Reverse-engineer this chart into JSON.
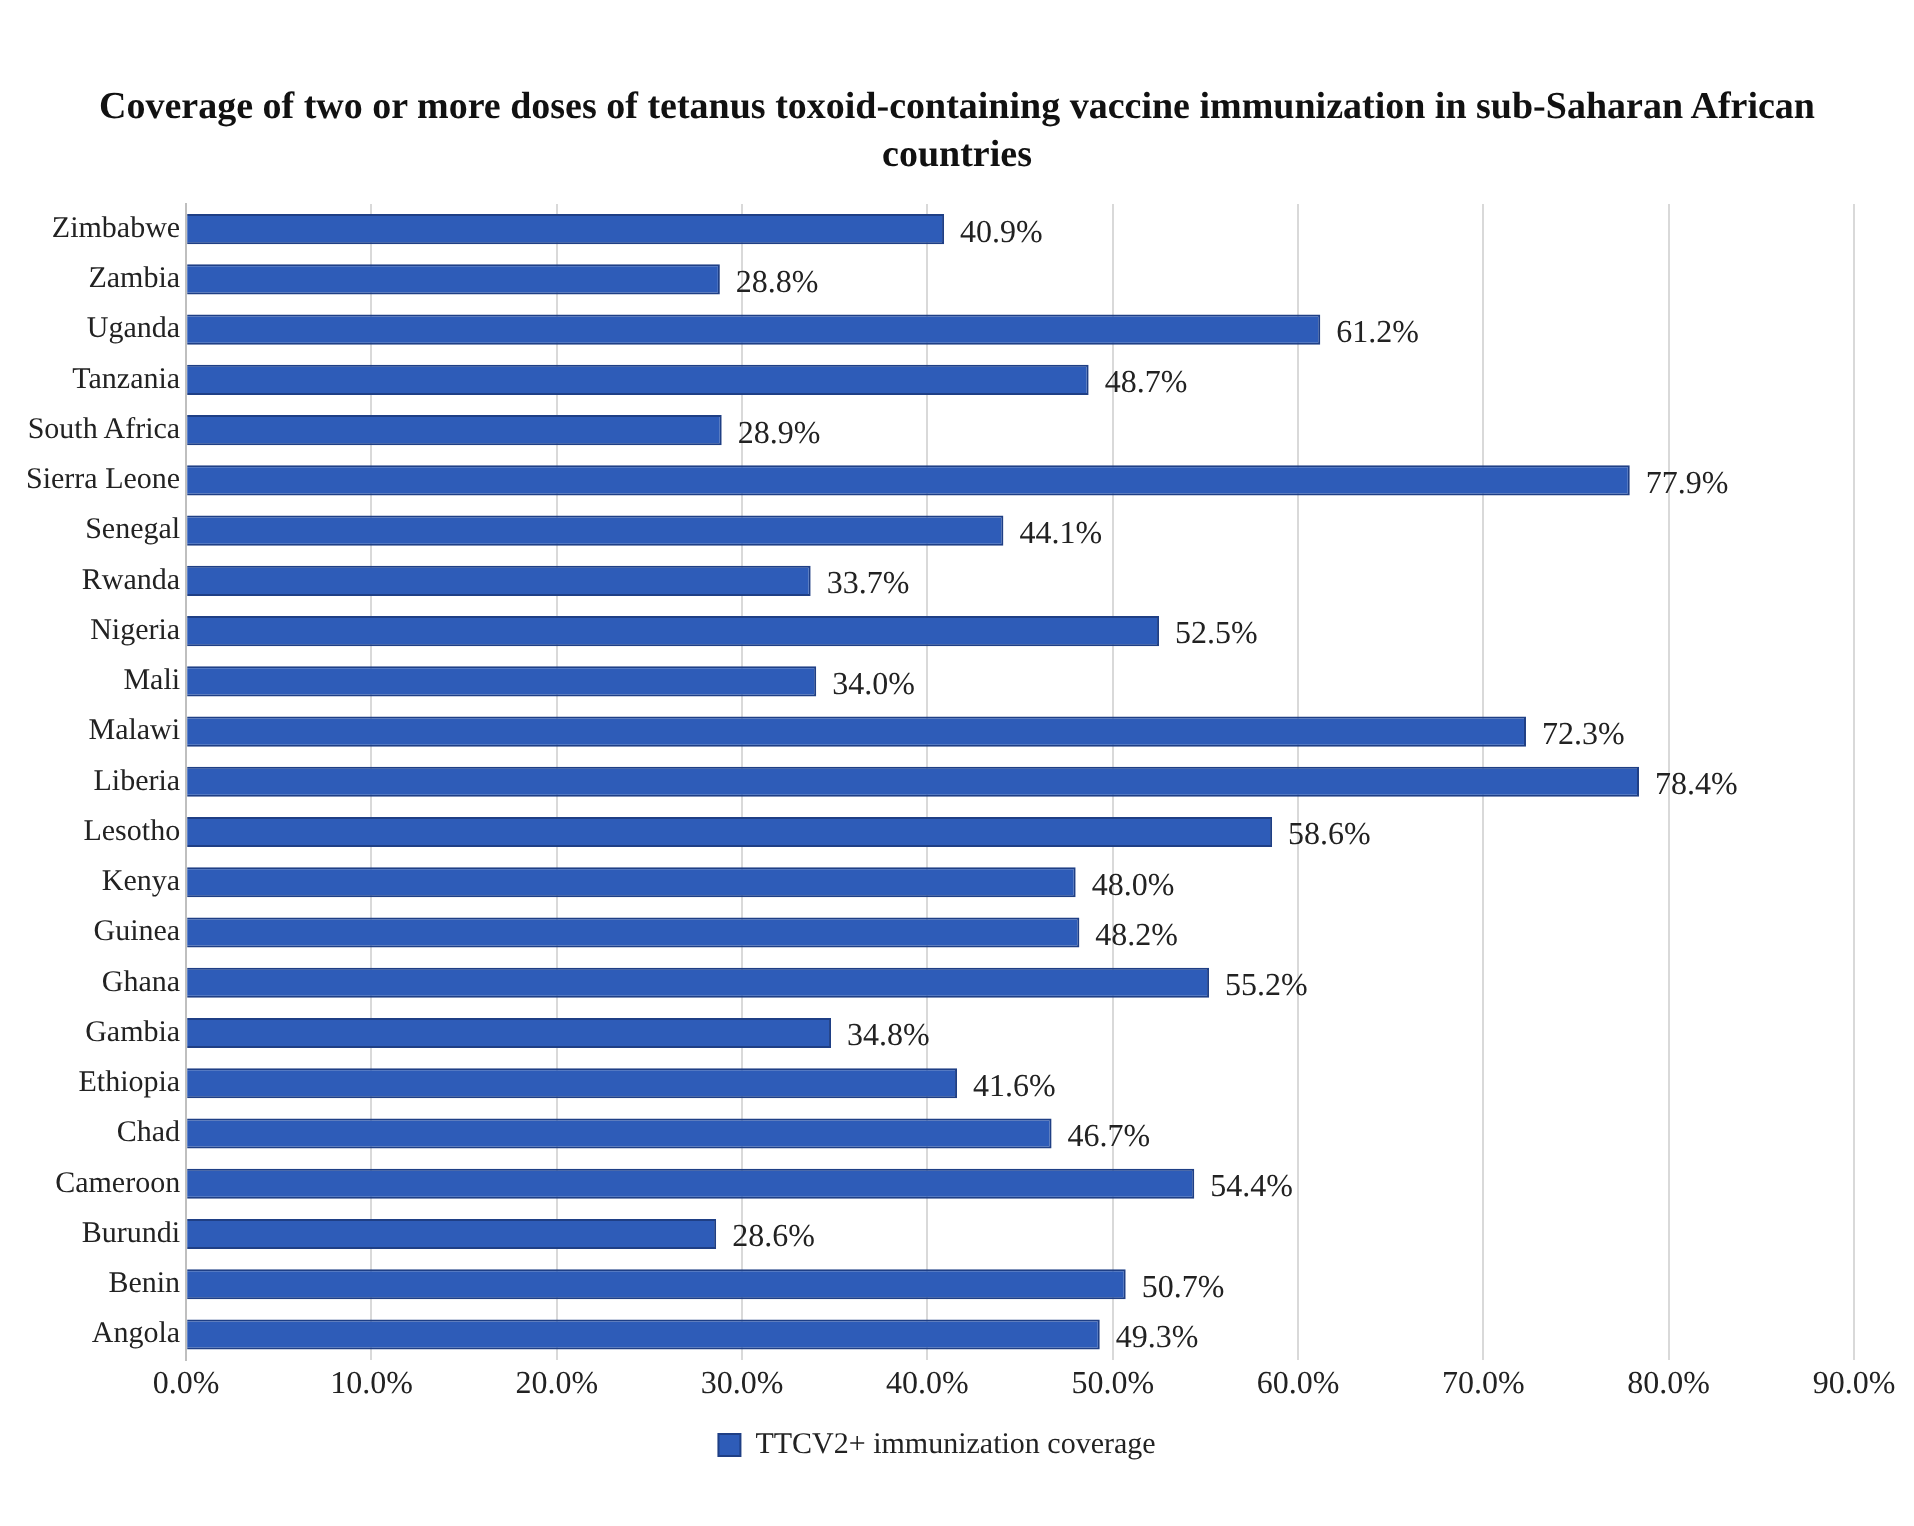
{
  "chart_data": {
    "type": "bar",
    "orientation": "horizontal",
    "title": "Coverage of two or more doses of tetanus toxoid-containing vaccine immunization in sub-Saharan African countries",
    "categories": [
      "Zimbabwe",
      "Zambia",
      "Uganda",
      "Tanzania",
      "South Africa",
      "Sierra Leone",
      "Senegal",
      "Rwanda",
      "Nigeria",
      "Mali",
      "Malawi",
      "Liberia",
      "Lesotho",
      "Kenya",
      "Guinea",
      "Ghana",
      "Gambia",
      "Ethiopia",
      "Chad",
      "Cameroon",
      "Burundi",
      "Benin",
      "Angola"
    ],
    "series": [
      {
        "name": "TTCV2+ immunization coverage",
        "color": "#2e5cb8",
        "values": [
          40.9,
          28.8,
          61.2,
          48.7,
          28.9,
          77.9,
          44.1,
          33.7,
          52.5,
          34.0,
          72.3,
          78.4,
          58.6,
          48.0,
          48.2,
          55.2,
          34.8,
          41.6,
          46.7,
          54.4,
          28.6,
          50.7,
          49.3
        ],
        "value_labels": [
          "40.9%",
          "28.8%",
          "61.2%",
          "48.7%",
          "28.9%",
          "77.9%",
          "44.1%",
          "33.7%",
          "52.5%",
          "34.0%",
          "72.3%",
          "78.4%",
          "58.6%",
          "48.0%",
          "48.2%",
          "55.2%",
          "34.8%",
          "41.6%",
          "46.7%",
          "54.4%",
          "28.6%",
          "50.7%",
          "49.3%"
        ]
      }
    ],
    "xlim": [
      0,
      90
    ],
    "xticks": [
      {
        "value": 0,
        "label": "0.0%"
      },
      {
        "value": 10,
        "label": "10.0%"
      },
      {
        "value": 20,
        "label": "20.0%"
      },
      {
        "value": 30,
        "label": "30.0%"
      },
      {
        "value": 40,
        "label": "40.0%"
      },
      {
        "value": 50,
        "label": "50.0%"
      },
      {
        "value": 60,
        "label": "60.0%"
      },
      {
        "value": 70,
        "label": "70.0%"
      },
      {
        "value": 80,
        "label": "80.0%"
      },
      {
        "value": 90,
        "label": "90.0%"
      }
    ],
    "grid": "x",
    "legend": "bottom"
  }
}
